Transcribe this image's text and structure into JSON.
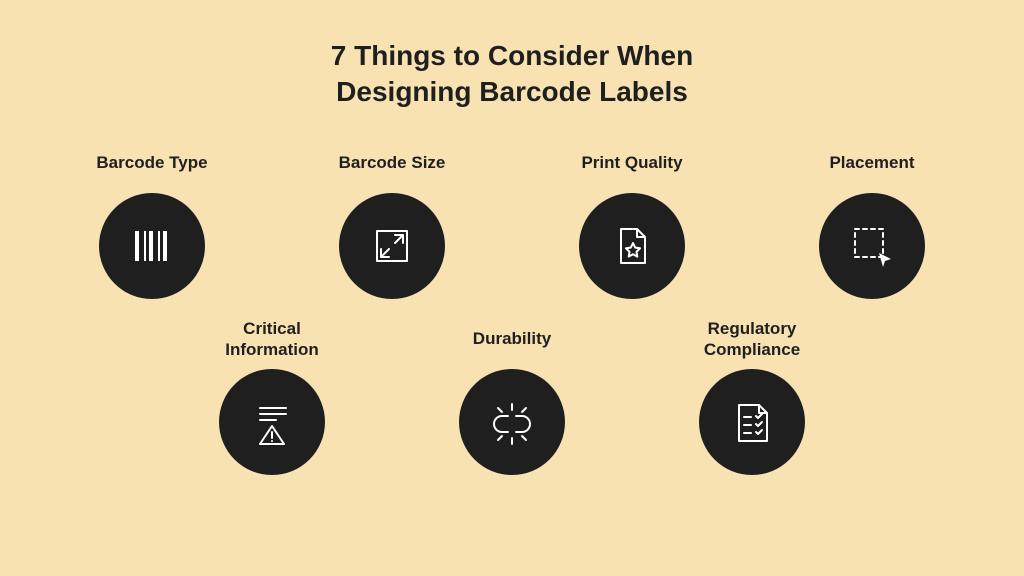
{
  "background_color": "#f8e2b2",
  "title": {
    "text": "7 Things to Consider When\nDesigning Barcode Labels",
    "color": "#1f1f1f",
    "fontsize": 28
  },
  "circle": {
    "diameter": 106,
    "bg": "#1f1f1f",
    "icon_stroke": "#ffffff",
    "icon_stroke_width": 2
  },
  "label_style": {
    "color": "#1f1f1f",
    "fontsize": 17
  },
  "items": [
    {
      "label": "Barcode Type",
      "icon": "barcode"
    },
    {
      "label": "Barcode Size",
      "icon": "resize"
    },
    {
      "label": "Print Quality",
      "icon": "file-star"
    },
    {
      "label": "Placement",
      "icon": "select-cursor"
    },
    {
      "label": "Critical\nInformation",
      "icon": "lines-warning"
    },
    {
      "label": "Durability",
      "icon": "broken-link"
    },
    {
      "label": "Regulatory\nCompliance",
      "icon": "checklist"
    }
  ],
  "layout": {
    "row1_count": 4,
    "row2_count": 3
  }
}
